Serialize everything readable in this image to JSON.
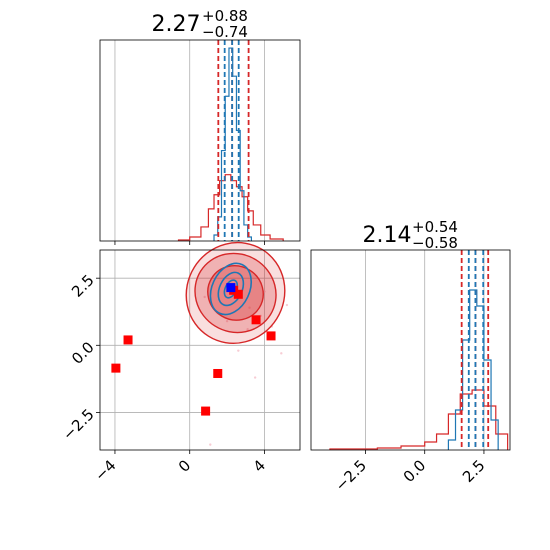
{
  "chart_data": [
    {
      "type": "histogram",
      "panel": "top",
      "title": {
        "value": "2.27",
        "plus": "+0.88",
        "minus": "−0.74"
      },
      "xlim": [
        -4.8,
        5.9
      ],
      "grid": true,
      "series": [
        {
          "color": "#1f77b4",
          "edges": [
            1.3,
            1.5,
            1.7,
            1.9,
            2.1,
            2.3,
            2.5,
            2.7,
            2.9,
            3.1,
            3.3
          ],
          "heights": [
            0.03,
            0.12,
            0.45,
            0.72,
            0.96,
            0.82,
            0.55,
            0.25,
            0.08,
            0.02
          ]
        },
        {
          "color": "#d62728",
          "edges": [
            -0.6,
            0.0,
            0.6,
            1.0,
            1.3,
            1.6,
            1.9,
            2.2,
            2.5,
            2.8,
            3.1,
            3.4,
            3.8,
            4.3,
            5.0
          ],
          "heights": [
            0.005,
            0.02,
            0.07,
            0.16,
            0.23,
            0.3,
            0.33,
            0.3,
            0.27,
            0.22,
            0.15,
            0.08,
            0.03,
            0.01
          ]
        }
      ],
      "markers": {
        "red": [
          1.53,
          2.27,
          3.15
        ],
        "blue": [
          1.87,
          2.27,
          2.62
        ]
      }
    },
    {
      "type": "scatter",
      "panel": "bottom-left",
      "xlim": [
        -4.8,
        5.9
      ],
      "ylim": [
        -3.9,
        3.55
      ],
      "xticks": [
        "−4",
        "0",
        "4"
      ],
      "xtick_values": [
        -4,
        0,
        4
      ],
      "yticks": [
        "−2.5",
        "0.0",
        "2.5"
      ],
      "ytick_values": [
        -2.5,
        0.0,
        2.5
      ],
      "grid": true,
      "points_red": [
        [
          2.35,
          2.05
        ],
        [
          -3.3,
          0.2
        ],
        [
          -3.95,
          -0.85
        ],
        [
          1.5,
          -1.05
        ],
        [
          0.85,
          -2.45
        ],
        [
          3.55,
          0.95
        ],
        [
          4.35,
          0.35
        ],
        [
          2.6,
          1.9
        ]
      ],
      "points_blue": [
        [
          2.2,
          2.15
        ]
      ],
      "contours": "2D density of red and blue samples"
    },
    {
      "type": "histogram",
      "panel": "bottom-right",
      "title": {
        "value": "2.14",
        "plus": "+0.54",
        "minus": "−0.58"
      },
      "xlim": [
        -4.8,
        3.6
      ],
      "xticks": [
        "−2.5",
        "0.0",
        "2.5"
      ],
      "xtick_values": [
        -2.5,
        0.0,
        2.5
      ],
      "grid": true,
      "series": [
        {
          "color": "#1f77b4",
          "edges": [
            1.0,
            1.3,
            1.6,
            1.9,
            2.2,
            2.5,
            2.8,
            3.1
          ],
          "heights": [
            0.05,
            0.2,
            0.55,
            0.8,
            0.72,
            0.45,
            0.15
          ]
        },
        {
          "color": "#d62728",
          "edges": [
            -4.0,
            -2.0,
            -1.0,
            0.0,
            0.5,
            1.0,
            1.5,
            2.0,
            2.5,
            3.0,
            3.5
          ],
          "heights": [
            0.005,
            0.01,
            0.02,
            0.04,
            0.08,
            0.18,
            0.28,
            0.3,
            0.22,
            0.08
          ]
        }
      ],
      "markers": {
        "red": [
          1.56,
          2.14,
          2.68
        ],
        "blue": [
          1.86,
          2.14,
          2.47
        ]
      }
    }
  ],
  "colors": {
    "blue": "#1f77b4",
    "red": "#d62728",
    "grid": "#b0b0b0"
  }
}
